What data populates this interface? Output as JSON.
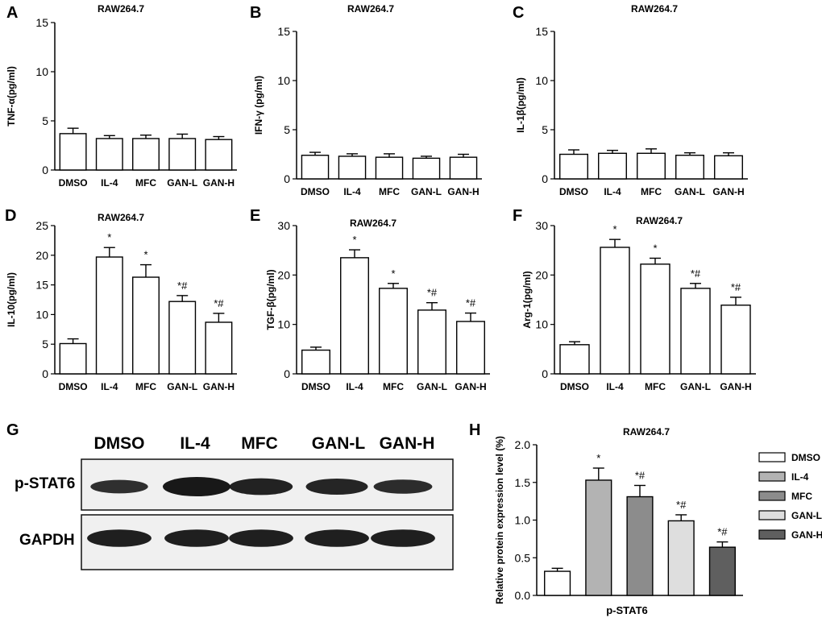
{
  "figure": {
    "panels": [
      {
        "letter": "A",
        "title": "RAW264.7"
      },
      {
        "letter": "B",
        "title": "RAW264.7"
      },
      {
        "letter": "C",
        "title": "RAW264.7"
      },
      {
        "letter": "D",
        "title": "RAW264.7"
      },
      {
        "letter": "E",
        "title": "RAW264.7"
      },
      {
        "letter": "F",
        "title": "RAW264.7"
      },
      {
        "letter": "G",
        "title": ""
      },
      {
        "letter": "H",
        "title": "RAW264.7"
      }
    ]
  },
  "western_blot": {
    "letter": "G",
    "lanes": [
      "DMSO",
      "IL-4",
      "MFC",
      "GAN-L",
      "GAN-H"
    ],
    "rows": [
      {
        "label": "p-STAT6",
        "intensity": [
          0.55,
          1.0,
          0.8,
          0.75,
          0.6
        ]
      },
      {
        "label": "GAPDH",
        "intensity": [
          0.85,
          0.85,
          0.85,
          0.85,
          0.85
        ]
      }
    ]
  },
  "colors": {
    "bar_fill": "#ffffff",
    "axis": "#000000",
    "h_series": [
      "#ffffff",
      "#b3b3b3",
      "#8c8c8c",
      "#dedede",
      "#5f5f5f"
    ]
  },
  "chart_data": [
    {
      "id": "A",
      "type": "bar",
      "title": "RAW264.7",
      "ylabel": "TNF-α(pg/ml)",
      "xlabel": "",
      "categories": [
        "DMSO",
        "IL-4",
        "MFC",
        "GAN-L",
        "GAN-H"
      ],
      "values": [
        3.7,
        3.2,
        3.2,
        3.2,
        3.1
      ],
      "errors": [
        0.55,
        0.3,
        0.35,
        0.45,
        0.3
      ],
      "annotations": [
        "",
        "",
        "",
        "",
        ""
      ],
      "ylim": [
        0,
        15
      ],
      "yticks": [
        0,
        5,
        10,
        15
      ]
    },
    {
      "id": "B",
      "type": "bar",
      "title": "RAW264.7",
      "ylabel": "IFN-γ (pg/ml)",
      "xlabel": "",
      "categories": [
        "DMSO",
        "IL-4",
        "MFC",
        "GAN-L",
        "GAN-H"
      ],
      "values": [
        2.4,
        2.3,
        2.2,
        2.1,
        2.2
      ],
      "errors": [
        0.3,
        0.25,
        0.35,
        0.2,
        0.3
      ],
      "annotations": [
        "",
        "",
        "",
        "",
        ""
      ],
      "ylim": [
        0,
        15
      ],
      "yticks": [
        0,
        5,
        10,
        15
      ]
    },
    {
      "id": "C",
      "type": "bar",
      "title": "RAW264.7",
      "ylabel": "IL-1β(pg/ml)",
      "xlabel": "",
      "categories": [
        "DMSO",
        "IL-4",
        "MFC",
        "GAN-L",
        "GAN-H"
      ],
      "values": [
        2.5,
        2.6,
        2.6,
        2.4,
        2.35
      ],
      "errors": [
        0.45,
        0.3,
        0.45,
        0.25,
        0.3
      ],
      "annotations": [
        "",
        "",
        "",
        "",
        ""
      ],
      "ylim": [
        0,
        15
      ],
      "yticks": [
        0,
        5,
        10,
        15
      ]
    },
    {
      "id": "D",
      "type": "bar",
      "title": "RAW264.7",
      "ylabel": "IL-10(pg/ml)",
      "xlabel": "",
      "categories": [
        "DMSO",
        "IL-4",
        "MFC",
        "GAN-L",
        "GAN-H"
      ],
      "values": [
        5.1,
        19.7,
        16.3,
        12.2,
        8.7
      ],
      "errors": [
        0.8,
        1.6,
        2.1,
        1.0,
        1.5
      ],
      "annotations": [
        "",
        "*",
        "*",
        "*#",
        "*#"
      ],
      "ylim": [
        0,
        25
      ],
      "yticks": [
        0,
        5,
        10,
        15,
        20,
        25
      ]
    },
    {
      "id": "E",
      "type": "bar",
      "title": "RAW264.7",
      "ylabel": "TGF-β(pg/ml)",
      "xlabel": "",
      "categories": [
        "DMSO",
        "IL-4",
        "MFC",
        "GAN-L",
        "GAN-H"
      ],
      "values": [
        4.8,
        23.5,
        17.3,
        12.9,
        10.6
      ],
      "errors": [
        0.6,
        1.6,
        1.0,
        1.5,
        1.7
      ],
      "annotations": [
        "",
        "*",
        "*",
        "*#",
        "*#"
      ],
      "ylim": [
        0,
        30
      ],
      "yticks": [
        0,
        10,
        20,
        30
      ]
    },
    {
      "id": "F",
      "type": "bar",
      "title": "RAW264.7",
      "ylabel": "Arg-1(pg/ml)",
      "xlabel": "",
      "categories": [
        "DMSO",
        "IL-4",
        "MFC",
        "GAN-L",
        "GAN-H"
      ],
      "values": [
        5.9,
        25.6,
        22.2,
        17.3,
        13.9
      ],
      "errors": [
        0.6,
        1.6,
        1.2,
        1.0,
        1.6
      ],
      "annotations": [
        "",
        "*",
        "*",
        "*#",
        "*#"
      ],
      "ylim": [
        0,
        30
      ],
      "yticks": [
        0,
        10,
        20,
        30
      ]
    },
    {
      "id": "H",
      "type": "bar",
      "title": "RAW264.7",
      "ylabel": "Relative protein expression level  (%)",
      "xlabel": "p-STAT6",
      "categories": [
        "DMSO",
        "IL-4",
        "MFC",
        "GAN-L",
        "GAN-H"
      ],
      "values": [
        0.32,
        1.53,
        1.31,
        0.99,
        0.64
      ],
      "errors": [
        0.04,
        0.16,
        0.15,
        0.08,
        0.07
      ],
      "annotations": [
        "",
        "*",
        "*#",
        "*#",
        "*#"
      ],
      "ylim": [
        0,
        2.0
      ],
      "yticks": [
        "0.0",
        "0.5",
        "1.0",
        "1.5",
        "2.0"
      ],
      "legend": [
        "DMSO",
        "IL-4",
        "MFC",
        "GAN-L",
        "GAN-H"
      ],
      "legend_position": "right"
    }
  ]
}
